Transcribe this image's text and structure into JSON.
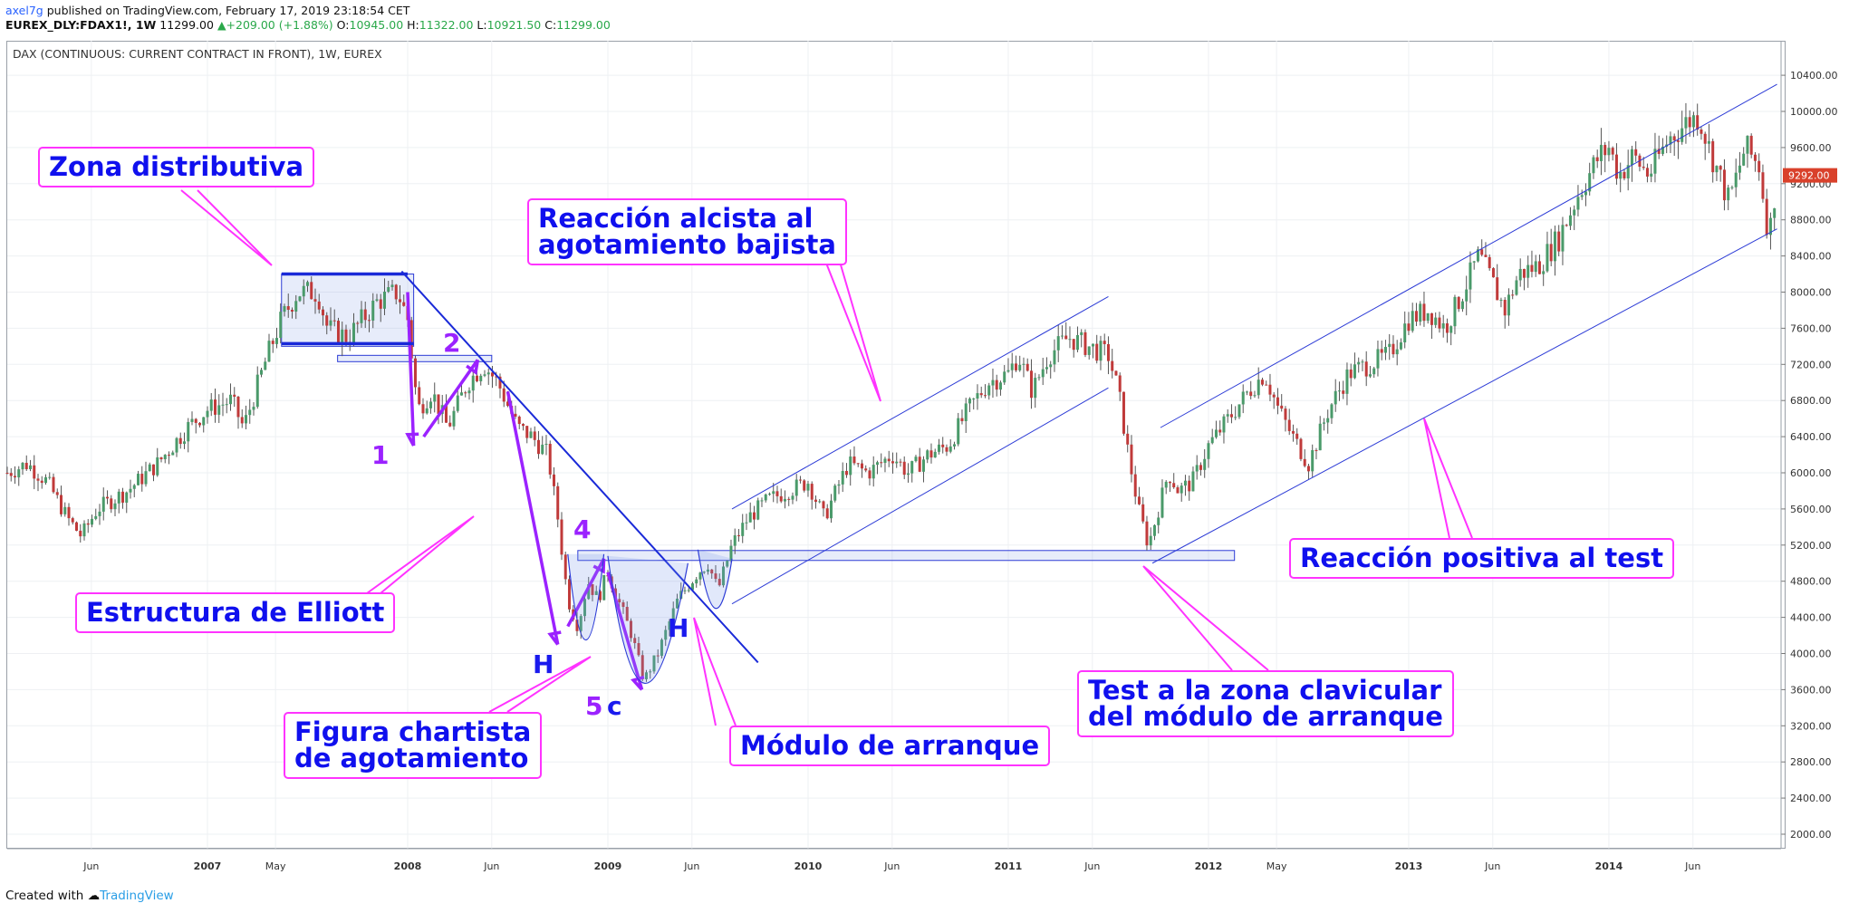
{
  "header": {
    "user": "axel7g",
    "published": "published on TradingView.com, February 17, 2019 23:18:54 CET",
    "symbol": "EUREX_DLY:FDAX1!, 1W",
    "last": "11299.00",
    "change": "▲+209.00 (+1.88%)",
    "o_label": "O:",
    "o": "10945.00",
    "h_label": "H:",
    "h": "11322.00",
    "l_label": "L:",
    "l": "10921.50",
    "c_label": "C:",
    "c": "11299.00"
  },
  "chart_data": {
    "type": "candlestick",
    "title": "DAX (CONTINUOUS: CURRENT CONTRACT IN FRONT), 1W, EUREX",
    "ylim": [
      1800,
      10600
    ],
    "y_ticks": [
      10400,
      10000,
      9600,
      9200,
      8800,
      8400,
      8000,
      7600,
      7200,
      6800,
      6400,
      6000,
      5600,
      5200,
      4800,
      4400,
      4000,
      3600,
      3200,
      2800,
      2400,
      2000
    ],
    "x_labels": [
      {
        "t": 2006.42,
        "label": "Jun"
      },
      {
        "t": 2007.0,
        "label": "2007"
      },
      {
        "t": 2007.34,
        "label": "May"
      },
      {
        "t": 2008.0,
        "label": "2008"
      },
      {
        "t": 2008.42,
        "label": "Jun"
      },
      {
        "t": 2009.0,
        "label": "2009"
      },
      {
        "t": 2009.42,
        "label": "Jun"
      },
      {
        "t": 2010.0,
        "label": "2010"
      },
      {
        "t": 2010.42,
        "label": "Jun"
      },
      {
        "t": 2011.0,
        "label": "2011"
      },
      {
        "t": 2011.42,
        "label": "Jun"
      },
      {
        "t": 2012.0,
        "label": "2012"
      },
      {
        "t": 2012.34,
        "label": "May"
      },
      {
        "t": 2013.0,
        "label": "2013"
      },
      {
        "t": 2013.42,
        "label": "Jun"
      },
      {
        "t": 2014.0,
        "label": "2014"
      },
      {
        "t": 2014.42,
        "label": "Jun"
      }
    ],
    "last_price": "9292.00",
    "price_path": [
      [
        2006.0,
        6000
      ],
      [
        2006.1,
        6100
      ],
      [
        2006.2,
        5900
      ],
      [
        2006.3,
        5500
      ],
      [
        2006.37,
        5300
      ],
      [
        2006.45,
        5600
      ],
      [
        2006.6,
        5800
      ],
      [
        2006.75,
        6100
      ],
      [
        2006.9,
        6500
      ],
      [
        2007.0,
        6700
      ],
      [
        2007.12,
        6800
      ],
      [
        2007.18,
        6500
      ],
      [
        2007.3,
        7300
      ],
      [
        2007.37,
        7700
      ],
      [
        2007.45,
        8000
      ],
      [
        2007.55,
        8000
      ],
      [
        2007.6,
        7600
      ],
      [
        2007.7,
        7500
      ],
      [
        2007.85,
        7900
      ],
      [
        2007.95,
        8000
      ],
      [
        2008.0,
        7700
      ],
      [
        2008.05,
        6700
      ],
      [
        2008.12,
        6900
      ],
      [
        2008.2,
        6500
      ],
      [
        2008.3,
        7000
      ],
      [
        2008.38,
        7200
      ],
      [
        2008.45,
        7000
      ],
      [
        2008.55,
        6500
      ],
      [
        2008.62,
        6400
      ],
      [
        2008.7,
        6200
      ],
      [
        2008.75,
        5500
      ],
      [
        2008.8,
        4600
      ],
      [
        2008.85,
        4300
      ],
      [
        2008.9,
        4800
      ],
      [
        2008.95,
        4600
      ],
      [
        2009.0,
        4900
      ],
      [
        2009.05,
        4600
      ],
      [
        2009.12,
        4200
      ],
      [
        2009.18,
        3700
      ],
      [
        2009.25,
        4000
      ],
      [
        2009.35,
        4600
      ],
      [
        2009.45,
        4900
      ],
      [
        2009.5,
        5000
      ],
      [
        2009.55,
        4700
      ],
      [
        2009.62,
        5200
      ],
      [
        2009.7,
        5500
      ],
      [
        2009.8,
        5700
      ],
      [
        2009.9,
        5800
      ],
      [
        2010.0,
        5900
      ],
      [
        2010.08,
        5500
      ],
      [
        2010.2,
        6100
      ],
      [
        2010.3,
        6000
      ],
      [
        2010.42,
        6200
      ],
      [
        2010.5,
        6000
      ],
      [
        2010.6,
        6200
      ],
      [
        2010.7,
        6300
      ],
      [
        2010.8,
        6700
      ],
      [
        2010.9,
        7000
      ],
      [
        2011.0,
        7100
      ],
      [
        2011.05,
        7300
      ],
      [
        2011.12,
        6900
      ],
      [
        2011.2,
        7300
      ],
      [
        2011.3,
        7500
      ],
      [
        2011.4,
        7400
      ],
      [
        2011.5,
        7300
      ],
      [
        2011.55,
        6900
      ],
      [
        2011.6,
        6200
      ],
      [
        2011.65,
        5600
      ],
      [
        2011.7,
        5200
      ],
      [
        2011.75,
        5600
      ],
      [
        2011.8,
        6000
      ],
      [
        2011.85,
        5800
      ],
      [
        2011.92,
        5900
      ],
      [
        2012.0,
        6300
      ],
      [
        2012.1,
        6600
      ],
      [
        2012.2,
        6900
      ],
      [
        2012.28,
        7100
      ],
      [
        2012.35,
        6700
      ],
      [
        2012.42,
        6400
      ],
      [
        2012.5,
        6100
      ],
      [
        2012.6,
        6700
      ],
      [
        2012.7,
        7100
      ],
      [
        2012.8,
        7200
      ],
      [
        2012.9,
        7300
      ],
      [
        2013.0,
        7700
      ],
      [
        2013.1,
        7800
      ],
      [
        2013.18,
        7600
      ],
      [
        2013.25,
        7900
      ],
      [
        2013.35,
        8400
      ],
      [
        2013.42,
        8100
      ],
      [
        2013.48,
        7800
      ],
      [
        2013.55,
        8200
      ],
      [
        2013.65,
        8300
      ],
      [
        2013.75,
        8600
      ],
      [
        2013.85,
        9100
      ],
      [
        2013.95,
        9500
      ],
      [
        2014.0,
        9600
      ],
      [
        2014.05,
        9300
      ],
      [
        2014.12,
        9500
      ],
      [
        2014.2,
        9300
      ],
      [
        2014.3,
        9700
      ],
      [
        2014.4,
        9900
      ],
      [
        2014.45,
        9950
      ],
      [
        2014.5,
        9600
      ],
      [
        2014.55,
        9300
      ],
      [
        2014.6,
        9000
      ],
      [
        2014.68,
        9600
      ],
      [
        2014.75,
        9400
      ],
      [
        2014.8,
        8600
      ],
      [
        2014.84,
        9292
      ]
    ]
  },
  "callouts": {
    "zona": "Zona distributiva",
    "reaccion_alcista": "Reacción alcista al\nagotamiento bajista",
    "estructura": "Estructura de Elliott",
    "figura": "Figura chartista\nde agotamiento",
    "modulo": "Módulo de arranque",
    "test": "Test a la zona clavicular\ndel módulo de arranque",
    "reaccion_positiva": "Reacción positiva al test"
  },
  "waves": {
    "w1": "1",
    "w2": "2",
    "w4": "4",
    "w5": "5",
    "wc": "c",
    "h1": "H",
    "h2": "H"
  },
  "footer": {
    "created": "Created with",
    "brand": "TradingView"
  }
}
